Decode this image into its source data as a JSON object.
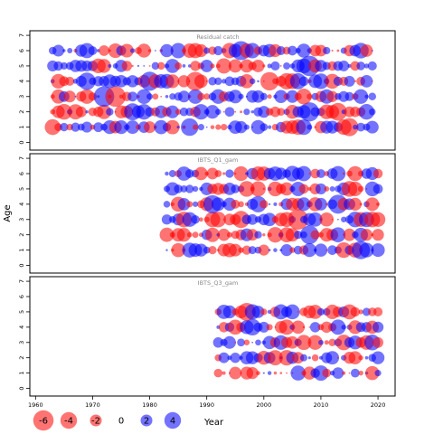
{
  "chart_data": {
    "type": "scatter",
    "ylabel": "Age",
    "xlabel": "Year",
    "xlim": [
      1959,
      2023
    ],
    "x_ticks": [
      1960,
      1970,
      1980,
      1990,
      2000,
      2010,
      2020
    ],
    "colors": {
      "positive": "#0000ff",
      "negative": "#ff0000",
      "fill_alpha": 0.55
    },
    "legend": {
      "placement": "bottom",
      "values": [
        -6,
        -4,
        -2,
        0,
        2,
        4
      ],
      "labels": [
        "-6",
        "-4",
        "-2",
        "0",
        "2",
        "4"
      ],
      "year_label": "Year"
    },
    "panels": [
      {
        "title": "Residual catch",
        "ylim": [
          -0.5,
          7.3
        ],
        "y_ticks": [
          0,
          1,
          2,
          3,
          4,
          5,
          6,
          7
        ],
        "ages": [
          1,
          2,
          3,
          4,
          5,
          6
        ],
        "years": [
          1963,
          2019
        ]
      },
      {
        "title": "IBTS_Q1_gam",
        "ylim": [
          -0.5,
          7.3
        ],
        "y_ticks": [
          0,
          1,
          2,
          3,
          4,
          5,
          6,
          7
        ],
        "ages": [
          1,
          2,
          3,
          4,
          5,
          6
        ],
        "years": [
          1983,
          2020
        ]
      },
      {
        "title": "IBTS_Q3_gam",
        "ylim": [
          -0.5,
          7.3
        ],
        "y_ticks": [
          0,
          1,
          2,
          3,
          4,
          5,
          6,
          7
        ],
        "ages": [
          1,
          2,
          3,
          4,
          5
        ],
        "years": [
          1992,
          2020
        ]
      }
    ]
  }
}
